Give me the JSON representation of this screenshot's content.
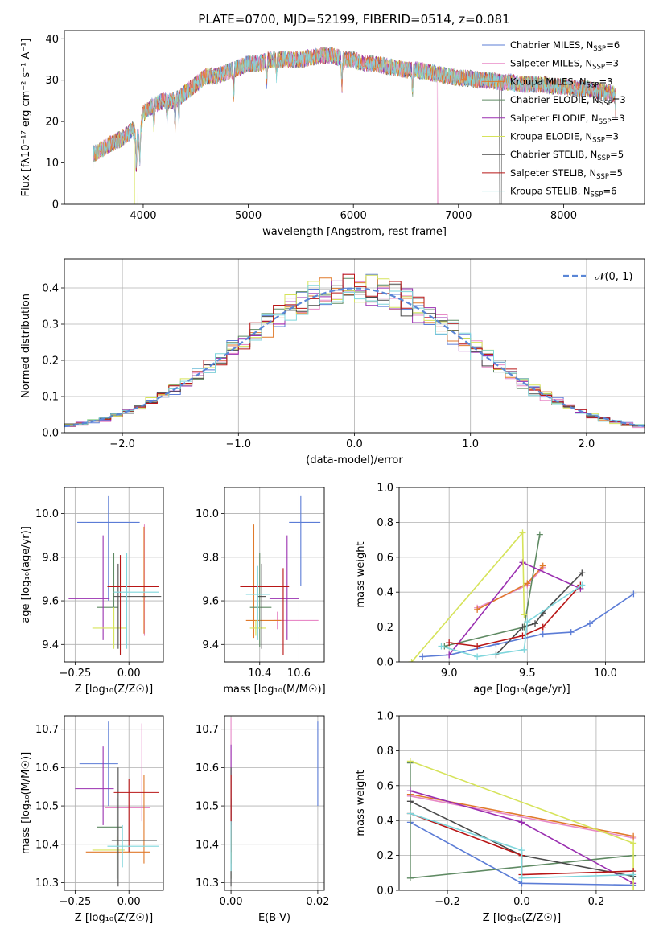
{
  "figure": {
    "title": "PLATE=0700, MJD=52199, FIBERID=0514, z=0.081"
  },
  "models": [
    {
      "name": "Chabrier MILES",
      "nssp": "6",
      "color": "#5b7cd6"
    },
    {
      "name": "Salpeter MILES",
      "nssp": "3",
      "color": "#e88ac7"
    },
    {
      "name": "Kroupa MILES",
      "nssp": "3",
      "color": "#e07a2b"
    },
    {
      "name": "Chabrier ELODIE",
      "nssp": "3",
      "color": "#5f8a63"
    },
    {
      "name": "Salpeter ELODIE",
      "nssp": "3",
      "color": "#9a2fb0"
    },
    {
      "name": "Kroupa ELODIE",
      "nssp": "3",
      "color": "#d6e35a"
    },
    {
      "name": "Chabrier STELIB",
      "nssp": "5",
      "color": "#4a4a4a"
    },
    {
      "name": "Salpeter STELIB",
      "nssp": "5",
      "color": "#b81616"
    },
    {
      "name": "Kroupa STELIB",
      "nssp": "6",
      "color": "#7fd6dc"
    }
  ],
  "chart_data": [
    {
      "id": "spectrum",
      "type": "line",
      "xlabel": "wavelength [Angstrom, rest frame]",
      "ylabel": "Flux [fλ10⁻¹⁷ erg cm⁻² s⁻¹ A⁻¹]",
      "xlim": [
        3250,
        8770
      ],
      "ylim": [
        0,
        42
      ],
      "xticks": [
        4000,
        5000,
        6000,
        7000,
        8000
      ],
      "yticks": [
        0,
        10,
        20,
        30,
        40
      ],
      "grid": false,
      "legend": "top-right",
      "continuum": [
        [
          3520,
          12
        ],
        [
          3650,
          14
        ],
        [
          3800,
          16
        ],
        [
          3900,
          18
        ],
        [
          3960,
          16
        ],
        [
          4000,
          22
        ],
        [
          4100,
          24
        ],
        [
          4200,
          25
        ],
        [
          4300,
          25
        ],
        [
          4400,
          27
        ],
        [
          4500,
          29
        ],
        [
          4600,
          31
        ],
        [
          4700,
          31
        ],
        [
          4800,
          32
        ],
        [
          4900,
          33
        ],
        [
          5000,
          34
        ],
        [
          5100,
          34
        ],
        [
          5200,
          35
        ],
        [
          5300,
          35
        ],
        [
          5400,
          35
        ],
        [
          5500,
          35
        ],
        [
          5600,
          35.5
        ],
        [
          5700,
          36
        ],
        [
          5800,
          36
        ],
        [
          5900,
          35
        ],
        [
          6000,
          35
        ],
        [
          6100,
          34
        ],
        [
          6200,
          34
        ],
        [
          6300,
          33.5
        ],
        [
          6400,
          33
        ],
        [
          6500,
          32.5
        ],
        [
          6600,
          32.5
        ],
        [
          6700,
          32
        ],
        [
          6800,
          31.5
        ],
        [
          6900,
          31
        ],
        [
          7000,
          30.5
        ],
        [
          7100,
          30.5
        ],
        [
          7200,
          30
        ],
        [
          7300,
          30
        ],
        [
          7400,
          29.5
        ],
        [
          7500,
          29.5
        ],
        [
          7600,
          29
        ],
        [
          7700,
          29
        ],
        [
          7800,
          29
        ],
        [
          7900,
          28.5
        ],
        [
          8000,
          28.5
        ],
        [
          8100,
          28
        ],
        [
          8200,
          28
        ],
        [
          8300,
          27.5
        ],
        [
          8400,
          27
        ],
        [
          8500,
          26.5
        ]
      ],
      "absorption_lines": [
        [
          3934,
          8
        ],
        [
          3968,
          7
        ],
        [
          4102,
          5
        ],
        [
          4227,
          4
        ],
        [
          4304,
          6
        ],
        [
          4340,
          5
        ],
        [
          4861,
          6
        ],
        [
          5175,
          5
        ],
        [
          5270,
          4
        ],
        [
          5890,
          7
        ],
        [
          6563,
          5
        ],
        [
          8498,
          5
        ],
        [
          8542,
          6
        ]
      ],
      "truncations": [
        {
          "model": "Kroupa ELODIE",
          "start": 3920,
          "end": 3950
        },
        {
          "model": "Salpeter MILES",
          "start": 6800,
          "end": 6810
        },
        {
          "model": "Chabrier STELIB",
          "start": 7390,
          "end": 7410
        }
      ]
    },
    {
      "id": "residuals",
      "type": "histogram",
      "xlabel": "(data-model)/error",
      "ylabel": "Normed distribution",
      "xlim": [
        -2.5,
        2.5
      ],
      "ylim": [
        0,
        0.48
      ],
      "xticks": [
        -2,
        -1,
        0,
        1,
        2
      ],
      "yticks": [
        0,
        0.1,
        0.2,
        0.3,
        0.4
      ],
      "grid": true,
      "legend": "top-right",
      "reference_label": "𝒩(0, 1)",
      "bin_width": 0.1
    },
    {
      "id": "age-vs-z",
      "type": "errorbar",
      "xlabel": "Z [log₁₀(Z/Z☉)]",
      "ylabel": "age  [log₁₀(age/yr)]",
      "xlim": [
        -0.3,
        0.16
      ],
      "ylim": [
        9.32,
        10.12
      ],
      "xticks": [
        -0.25,
        0.0
      ],
      "yticks": [
        9.4,
        9.6,
        9.8,
        10.0
      ],
      "grid": true,
      "points": [
        {
          "x": -0.095,
          "y": 9.96,
          "ex": [
            -0.24,
            0.05
          ],
          "ey": [
            9.6,
            10.08
          ]
        },
        {
          "x": 0.072,
          "y": 9.62,
          "ex": [
            0.06,
            0.08
          ],
          "ey": [
            9.44,
            9.95
          ]
        },
        {
          "x": 0.07,
          "y": 9.62,
          "ex": [
            0.06,
            0.08
          ],
          "ey": [
            9.45,
            9.94
          ]
        },
        {
          "x": -0.07,
          "y": 9.57,
          "ex": [
            -0.15,
            -0.05
          ],
          "ey": [
            9.39,
            9.82
          ]
        },
        {
          "x": -0.12,
          "y": 9.61,
          "ex": [
            -0.28,
            -0.09
          ],
          "ey": [
            9.42,
            9.9
          ]
        },
        {
          "x": -0.07,
          "y": 9.475,
          "ex": [
            -0.17,
            -0.01
          ],
          "ey": [
            9.38,
            9.57
          ]
        },
        {
          "x": -0.05,
          "y": 9.62,
          "ex": [
            -0.07,
            0.15
          ],
          "ey": [
            9.38,
            9.77
          ]
        },
        {
          "x": -0.04,
          "y": 9.665,
          "ex": [
            -0.1,
            0.14
          ],
          "ey": [
            9.35,
            9.81
          ]
        },
        {
          "x": -0.01,
          "y": 9.64,
          "ex": [
            -0.07,
            0.14
          ],
          "ey": [
            9.38,
            9.82
          ]
        }
      ]
    },
    {
      "id": "age-vs-mass",
      "type": "errorbar",
      "xlabel": "mass [log₁₀(M/M☉)]",
      "ylabel": "",
      "xlim": [
        10.22,
        10.73
      ],
      "ylim": [
        9.32,
        10.12
      ],
      "xticks": [
        10.4,
        10.6
      ],
      "yticks": [
        9.4,
        9.6,
        9.8,
        10.0
      ],
      "grid": true,
      "points": [
        {
          "x": 10.61,
          "y": 9.96,
          "ex": [
            10.55,
            10.71
          ],
          "ey": [
            9.67,
            10.08
          ]
        },
        {
          "x": 10.49,
          "y": 9.51,
          "ex": [
            10.47,
            10.7
          ],
          "ey": [
            9.47,
            9.55
          ]
        },
        {
          "x": 10.37,
          "y": 9.51,
          "ex": [
            10.33,
            10.51
          ],
          "ey": [
            9.43,
            9.95
          ]
        },
        {
          "x": 10.4,
          "y": 9.57,
          "ex": [
            10.35,
            10.46
          ],
          "ey": [
            9.39,
            9.82
          ]
        },
        {
          "x": 10.54,
          "y": 9.61,
          "ex": [
            10.45,
            10.6
          ],
          "ey": [
            9.42,
            9.9
          ]
        },
        {
          "x": 10.38,
          "y": 9.475,
          "ex": [
            10.35,
            10.43
          ],
          "ey": [
            9.44,
            9.51
          ]
        },
        {
          "x": 10.41,
          "y": 9.62,
          "ex": [
            10.39,
            10.43
          ],
          "ey": [
            9.38,
            9.77
          ]
        },
        {
          "x": 10.52,
          "y": 9.665,
          "ex": [
            10.3,
            10.55
          ],
          "ey": [
            9.35,
            9.75
          ]
        },
        {
          "x": 10.39,
          "y": 9.63,
          "ex": [
            10.33,
            10.45
          ],
          "ey": [
            9.42,
            9.76
          ]
        }
      ]
    },
    {
      "id": "weight-vs-age",
      "type": "line",
      "xlabel": "age  [log₁₀(age/yr)]",
      "ylabel": "mass weight",
      "xlim": [
        8.68,
        10.25
      ],
      "ylim": [
        0,
        1
      ],
      "xticks": [
        9.0,
        9.5,
        10.0
      ],
      "yticks": [
        0,
        0.2,
        0.4,
        0.6,
        0.8,
        1.0
      ],
      "grid": true,
      "series": [
        {
          "model": "Chabrier MILES",
          "x": [
            8.83,
            9.0,
            9.3,
            9.6,
            9.78,
            9.9,
            10.18
          ],
          "y": [
            0.03,
            0.04,
            0.1,
            0.16,
            0.17,
            0.22,
            0.39
          ]
        },
        {
          "model": "Salpeter MILES",
          "x": [
            9.18,
            9.5,
            9.6
          ],
          "y": [
            0.31,
            0.44,
            0.54
          ]
        },
        {
          "model": "Kroupa MILES",
          "x": [
            9.18,
            9.5,
            9.6
          ],
          "y": [
            0.3,
            0.45,
            0.55
          ]
        },
        {
          "model": "Chabrier ELODIE",
          "x": [
            8.97,
            9.48,
            9.58
          ],
          "y": [
            0.09,
            0.2,
            0.73
          ]
        },
        {
          "model": "Salpeter ELODIE",
          "x": [
            9.0,
            9.47,
            9.84
          ],
          "y": [
            0.04,
            0.57,
            0.42
          ]
        },
        {
          "model": "Kroupa ELODIE",
          "x": [
            8.76,
            9.47,
            9.48
          ],
          "y": [
            0.0,
            0.74,
            0.27
          ]
        },
        {
          "model": "Chabrier STELIB",
          "x": [
            9.3,
            9.47,
            9.55,
            9.6,
            9.85
          ],
          "y": [
            0.04,
            0.2,
            0.22,
            0.28,
            0.51
          ]
        },
        {
          "model": "Salpeter STELIB",
          "x": [
            9.0,
            9.18,
            9.47,
            9.6,
            9.84
          ],
          "y": [
            0.11,
            0.09,
            0.15,
            0.2,
            0.44
          ]
        },
        {
          "model": "Kroupa STELIB",
          "x": [
            8.95,
            9.18,
            9.48,
            9.5,
            9.85
          ],
          "y": [
            0.09,
            0.03,
            0.07,
            0.23,
            0.44
          ]
        }
      ]
    },
    {
      "id": "mass-vs-z",
      "type": "errorbar",
      "xlabel": "Z [log₁₀(Z/Z☉)]",
      "ylabel": "mass [log₁₀(M/M☉)]",
      "xlim": [
        -0.3,
        0.16
      ],
      "ylim": [
        10.28,
        10.735
      ],
      "xticks": [
        -0.25,
        0.0
      ],
      "yticks": [
        10.3,
        10.4,
        10.5,
        10.6,
        10.7
      ],
      "grid": true,
      "points": [
        {
          "x": -0.095,
          "y": 10.61,
          "ex": [
            -0.23,
            -0.05
          ],
          "ey": [
            10.5,
            10.72
          ]
        },
        {
          "x": 0.06,
          "y": 10.495,
          "ex": [
            -0.11,
            0.1
          ],
          "ey": [
            10.46,
            10.715
          ]
        },
        {
          "x": 0.07,
          "y": 10.38,
          "ex": [
            -0.2,
            0.1
          ],
          "ey": [
            10.35,
            10.58
          ]
        },
        {
          "x": -0.055,
          "y": 10.445,
          "ex": [
            -0.15,
            -0.03
          ],
          "ey": [
            10.31,
            10.52
          ]
        },
        {
          "x": -0.12,
          "y": 10.545,
          "ex": [
            -0.25,
            -0.07
          ],
          "ey": [
            10.45,
            10.655
          ]
        },
        {
          "x": -0.055,
          "y": 10.385,
          "ex": [
            -0.17,
            -0.02
          ],
          "ey": [
            10.36,
            10.42
          ]
        },
        {
          "x": -0.05,
          "y": 10.41,
          "ex": [
            -0.08,
            0.13
          ],
          "ey": [
            10.29,
            10.6
          ]
        },
        {
          "x": 0.0,
          "y": 10.535,
          "ex": [
            -0.07,
            0.14
          ],
          "ey": [
            10.38,
            10.57
          ]
        },
        {
          "x": -0.03,
          "y": 10.395,
          "ex": [
            -0.1,
            0.14
          ],
          "ey": [
            10.34,
            10.45
          ]
        }
      ]
    },
    {
      "id": "mass-vs-ebv",
      "type": "errorbar",
      "xlabel": "E(B-V)",
      "ylabel": "",
      "xlim": [
        -0.0015,
        0.0215
      ],
      "ylim": [
        10.28,
        10.735
      ],
      "xticks": [
        0.0,
        0.02
      ],
      "yticks": [
        10.3,
        10.4,
        10.5,
        10.6,
        10.7
      ],
      "grid": true,
      "points": [
        {
          "x": 0.02,
          "y": 10.61,
          "ey": [
            10.5,
            10.72
          ]
        },
        {
          "x": 0.0,
          "y": 10.6,
          "ey": [
            10.46,
            10.73
          ]
        },
        {
          "x": 0.0,
          "y": 10.45,
          "ey": [
            10.35,
            10.58
          ]
        },
        {
          "x": 0.0,
          "y": 10.4,
          "ey": [
            10.31,
            10.52
          ]
        },
        {
          "x": 0.0,
          "y": 10.55,
          "ey": [
            10.45,
            10.66
          ]
        },
        {
          "x": 0.0,
          "y": 10.39,
          "ey": [
            10.36,
            10.42
          ]
        },
        {
          "x": 0.0,
          "y": 10.42,
          "ey": [
            10.29,
            10.6
          ]
        },
        {
          "x": 0.0,
          "y": 10.5,
          "ey": [
            10.38,
            10.58
          ]
        },
        {
          "x": 0.0,
          "y": 10.39,
          "ey": [
            10.33,
            10.46
          ]
        }
      ]
    },
    {
      "id": "weight-vs-z",
      "type": "line",
      "xlabel": "Z [log₁₀(Z/Z☉)]",
      "ylabel": "mass weight",
      "xlim": [
        -0.33,
        0.33
      ],
      "ylim": [
        0,
        1
      ],
      "xticks": [
        -0.2,
        0.0,
        0.2
      ],
      "yticks": [
        0,
        0.2,
        0.4,
        0.6,
        0.8,
        1.0
      ],
      "grid": true,
      "series": [
        {
          "model": "Chabrier MILES",
          "x": [
            -0.3,
            0.0,
            0.3
          ],
          "y": [
            0.39,
            0.04,
            0.03
          ]
        },
        {
          "model": "Salpeter MILES",
          "x": [
            -0.3,
            0.3
          ],
          "y": [
            0.54,
            0.3
          ]
        },
        {
          "model": "Kroupa MILES",
          "x": [
            -0.3,
            0.3
          ],
          "y": [
            0.55,
            0.31
          ]
        },
        {
          "model": "Chabrier ELODIE",
          "x": [
            -0.3,
            -0.3,
            0.3
          ],
          "y": [
            0.73,
            0.07,
            0.2
          ]
        },
        {
          "model": "Salpeter ELODIE",
          "x": [
            -0.3,
            0.0,
            0.3
          ],
          "y": [
            0.57,
            0.39,
            0.04
          ]
        },
        {
          "model": "Kroupa ELODIE",
          "x": [
            -0.3,
            0.3,
            0.3
          ],
          "y": [
            0.74,
            0.27,
            0.0
          ]
        },
        {
          "model": "Chabrier STELIB",
          "x": [
            -0.3,
            0.0,
            0.3
          ],
          "y": [
            0.51,
            0.2,
            0.08
          ]
        },
        {
          "model": "Salpeter STELIB",
          "x": [
            -0.3,
            0.0,
            0.0,
            0.3
          ],
          "y": [
            0.44,
            0.2,
            0.09,
            0.11
          ]
        },
        {
          "model": "Kroupa STELIB",
          "x": [
            -0.3,
            0.0,
            0.0,
            0.3
          ],
          "y": [
            0.44,
            0.23,
            0.07,
            0.09
          ]
        }
      ]
    }
  ]
}
